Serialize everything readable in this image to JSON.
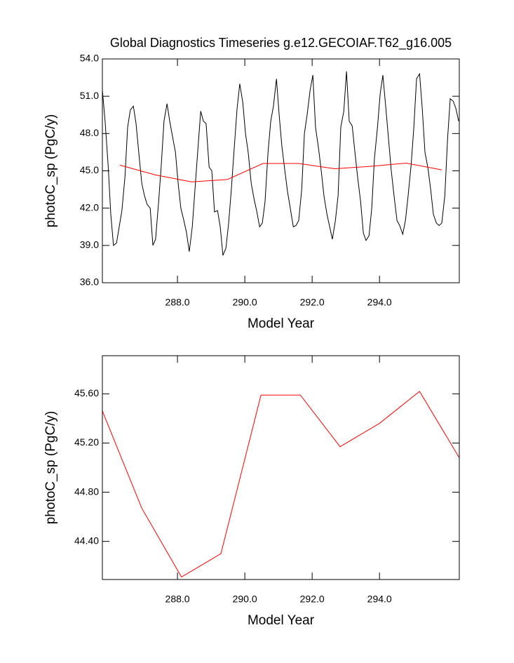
{
  "chart_data": [
    {
      "type": "line",
      "title": "Global Diagnostics Timeseries g.e12.GECOIAF.T62_g16.005",
      "xlabel": "Model Year",
      "ylabel": "photoC_sp (PgC/y)",
      "xlim": [
        285.77,
        296.37
      ],
      "xticks": [
        {
          "value": 288,
          "label": "288.0"
        },
        {
          "value": 290,
          "label": "290.0"
        },
        {
          "value": 292,
          "label": "292.0"
        },
        {
          "value": 294,
          "label": "294.0"
        }
      ],
      "ylim": [
        36,
        54
      ],
      "yticks": [
        {
          "value": 36,
          "label": "36.0"
        },
        {
          "value": 39,
          "label": "39.0"
        },
        {
          "value": 42,
          "label": "42.0"
        },
        {
          "value": 45,
          "label": "45.0"
        },
        {
          "value": 48,
          "label": "48.0"
        },
        {
          "value": 51,
          "label": "51.0"
        },
        {
          "value": 54,
          "label": "54.0"
        }
      ],
      "series": [
        {
          "color": "#000000",
          "x": [
            285.77,
            285.85,
            285.94,
            286.02,
            286.1,
            286.19,
            286.27,
            286.35,
            286.44,
            286.52,
            286.6,
            286.69,
            286.77,
            286.85,
            286.94,
            287.02,
            287.1,
            287.19,
            287.27,
            287.35,
            287.44,
            287.52,
            287.6,
            287.69,
            287.77,
            287.85,
            287.94,
            288.02,
            288.1,
            288.19,
            288.27,
            288.35,
            288.44,
            288.52,
            288.6,
            288.69,
            288.77,
            288.85,
            288.94,
            289.02,
            289.1,
            289.19,
            289.27,
            289.35,
            289.44,
            289.52,
            289.6,
            289.69,
            289.77,
            289.85,
            289.94,
            290.02,
            290.1,
            290.19,
            290.27,
            290.35,
            290.44,
            290.52,
            290.6,
            290.69,
            290.77,
            290.85,
            290.94,
            291.02,
            291.1,
            291.19,
            291.27,
            291.35,
            291.44,
            291.52,
            291.6,
            291.69,
            291.77,
            291.85,
            291.94,
            292.02,
            292.1,
            292.19,
            292.27,
            292.35,
            292.44,
            292.52,
            292.6,
            292.69,
            292.77,
            292.85,
            292.94,
            293.02,
            293.1,
            293.19,
            293.27,
            293.35,
            293.44,
            293.52,
            293.6,
            293.69,
            293.77,
            293.85,
            293.94,
            294.02,
            294.1,
            294.19,
            294.27,
            294.35,
            294.44,
            294.52,
            294.6,
            294.69,
            294.77,
            294.85,
            294.94,
            295.02,
            295.1,
            295.19,
            295.27,
            295.35,
            295.44,
            295.52,
            295.6,
            295.69,
            295.77,
            295.85,
            295.94,
            296.02,
            296.1,
            296.19,
            296.27,
            296.35
          ],
          "values": [
            51.5,
            49.0,
            45.5,
            41.5,
            39.0,
            39.2,
            40.5,
            41.8,
            44.5,
            48.5,
            49.9,
            50.2,
            48.8,
            46.5,
            44.0,
            43.0,
            42.3,
            42.0,
            39.0,
            39.5,
            42.5,
            45.5,
            49.0,
            50.4,
            49.0,
            47.8,
            46.5,
            44.0,
            42.0,
            41.0,
            40.0,
            38.5,
            40.5,
            43.5,
            46.5,
            49.8,
            49.0,
            48.8,
            45.3,
            45.0,
            41.7,
            41.8,
            40.5,
            38.2,
            38.8,
            40.8,
            43.5,
            47.0,
            50.0,
            52.0,
            50.5,
            48.0,
            46.5,
            44.0,
            42.8,
            41.8,
            40.5,
            40.8,
            42.5,
            46.5,
            49.0,
            50.2,
            52.4,
            49.5,
            47.0,
            45.0,
            43.3,
            42.0,
            40.5,
            40.6,
            41.0,
            43.5,
            48.0,
            49.5,
            51.5,
            52.7,
            48.5,
            46.8,
            45.0,
            43.0,
            41.5,
            40.5,
            39.5,
            41.0,
            43.0,
            48.5,
            49.8,
            53.0,
            49.0,
            48.6,
            46.5,
            44.5,
            42.5,
            40.0,
            39.4,
            39.8,
            42.0,
            46.0,
            48.5,
            51.2,
            52.7,
            50.0,
            47.5,
            45.0,
            42.8,
            41.0,
            40.6,
            39.9,
            41.0,
            43.0,
            45.5,
            48.5,
            52.4,
            52.8,
            50.0,
            46.5,
            45.2,
            43.5,
            41.5,
            40.8,
            40.6,
            40.8,
            43.0,
            47.5,
            50.8,
            50.6,
            50.0,
            49.0
          ]
        },
        {
          "color": "#ff0000",
          "x": [
            286.29,
            287.35,
            288.42,
            289.48,
            290.54,
            291.6,
            292.67,
            293.73,
            294.79,
            295.85
          ],
          "values": [
            45.46,
            44.67,
            44.11,
            44.3,
            45.59,
            45.59,
            45.17,
            45.36,
            45.62,
            45.08
          ]
        }
      ]
    },
    {
      "type": "line",
      "xlabel": "Model Year",
      "ylabel": "photoC_sp (PgC/y)",
      "xlim": [
        285.77,
        296.37
      ],
      "xticks": [
        {
          "value": 288,
          "label": "288.0"
        },
        {
          "value": 290,
          "label": "290.0"
        },
        {
          "value": 292,
          "label": "292.0"
        },
        {
          "value": 294,
          "label": "294.0"
        }
      ],
      "ylim": [
        44.09,
        45.91
      ],
      "yticks": [
        {
          "value": 44.4,
          "label": "44.40"
        },
        {
          "value": 44.8,
          "label": "44.80"
        },
        {
          "value": 45.2,
          "label": "45.20"
        },
        {
          "value": 45.6,
          "label": "45.60"
        }
      ],
      "series": [
        {
          "color": "#ff0000",
          "x": [
            285.77,
            286.94,
            288.12,
            289.29,
            290.48,
            291.65,
            292.83,
            294.0,
            295.19,
            296.37
          ],
          "values": [
            45.46,
            44.67,
            44.11,
            44.3,
            45.59,
            45.59,
            45.17,
            45.36,
            45.62,
            45.08
          ]
        }
      ]
    }
  ]
}
